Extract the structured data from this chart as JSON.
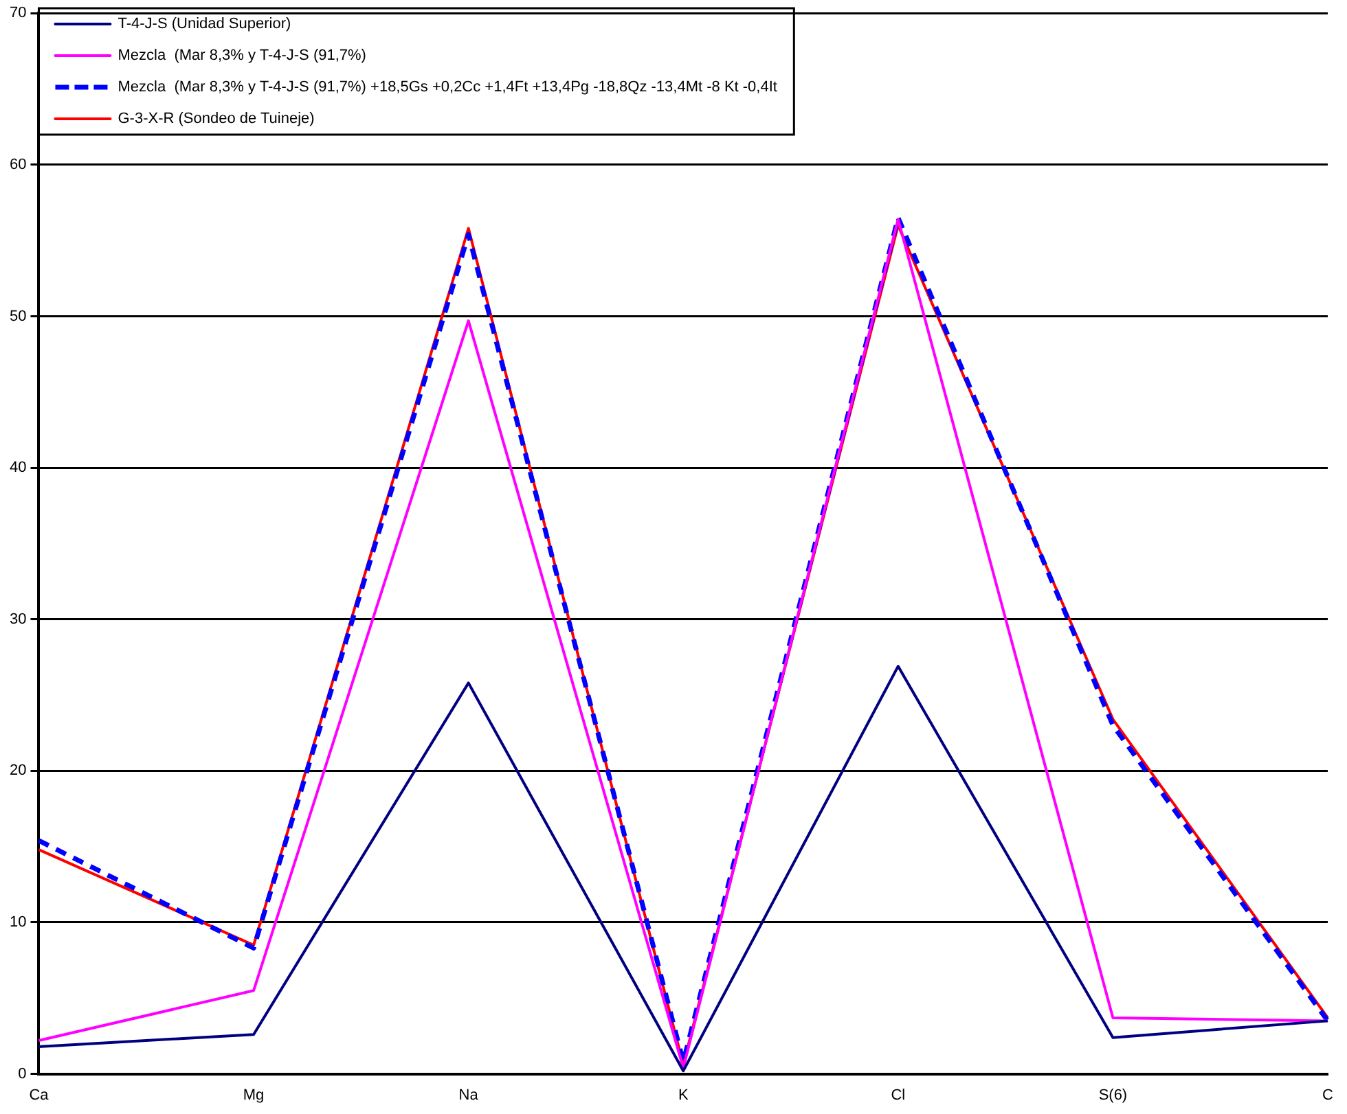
{
  "chart_data": {
    "type": "line",
    "categories": [
      "Ca",
      "Mg",
      "Na",
      "K",
      "Cl",
      "S(6)",
      "C"
    ],
    "ylim": [
      0,
      70
    ],
    "yticks": [
      0,
      10,
      20,
      30,
      40,
      50,
      60,
      70
    ],
    "grid": "y",
    "legend": "top left",
    "marker": "none",
    "series": [
      {
        "name": "T-4-J-S (Unidad Superior)",
        "color": "#000080",
        "values": [
          1.8,
          2.6,
          25.8,
          0.2,
          26.9,
          2.4,
          3.5
        ]
      },
      {
        "name": "Mezcla  (Mar 8,3% y T-4-J-S (91,7%)",
        "color": "#ff00ff",
        "values": [
          2.2,
          5.5,
          49.7,
          0.4,
          56.4,
          3.7,
          3.5
        ]
      },
      {
        "name": "Mezcla  (Mar 8,3% y T-4-J-S (91,7%) +18,5Gs +0,2Cc +1,4Ft +13,4Pg -18,8Qz -13,4Mt -8 Kt -0,4It",
        "color": "#0000ff",
        "line_style": "dashed",
        "values": [
          15.4,
          8.3,
          55.4,
          0.8,
          56.5,
          23.0,
          3.5
        ]
      },
      {
        "name": "G-3-X-R (Sondeo de Tuineje)",
        "color": "#ff0000",
        "values": [
          14.8,
          8.5,
          55.8,
          0.6,
          56.0,
          23.4,
          3.7
        ]
      }
    ]
  }
}
